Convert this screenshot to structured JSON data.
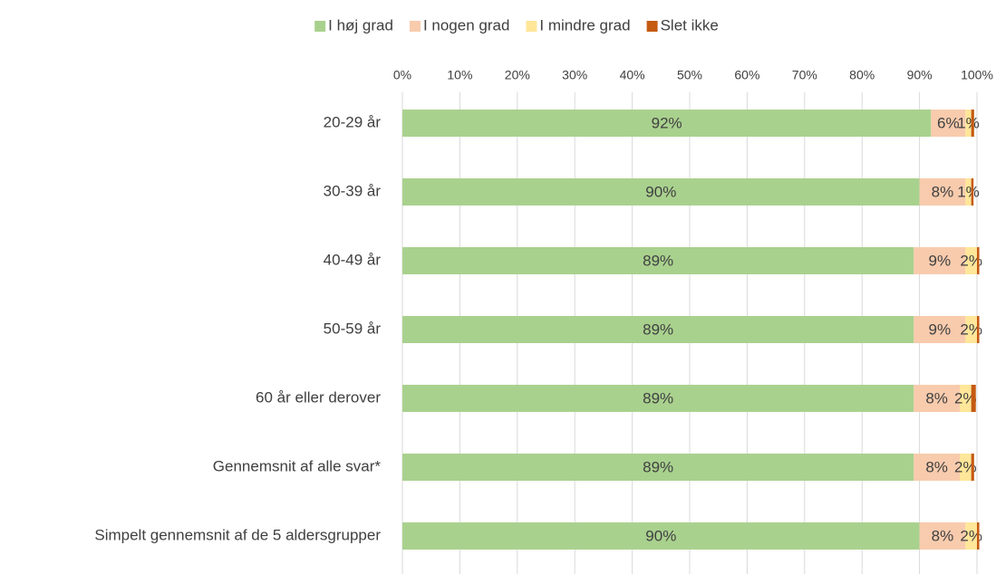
{
  "chart_data": {
    "type": "stacked_barh",
    "categories": [
      "20-29 år",
      "30-39 år",
      "40-49 år",
      "50-59 år",
      "60 år eller derover",
      "Gennemsnit af alle svar*",
      "Simpelt gennemsnit af de 5 aldersgrupper"
    ],
    "series": [
      {
        "name": "I høj grad",
        "color": "#a9d18e",
        "values": [
          92,
          90,
          89,
          89,
          89,
          89,
          90
        ],
        "value_labels": [
          "92%",
          "90%",
          "89%",
          "89%",
          "89%",
          "89%",
          "90%"
        ]
      },
      {
        "name": "I nogen grad",
        "color": "#f8cbad",
        "values": [
          6,
          8,
          9,
          9,
          8,
          8,
          8
        ],
        "value_labels": [
          "6%",
          "8%",
          "9%",
          "9%",
          "8%",
          "8%",
          "8%"
        ]
      },
      {
        "name": "I mindre grad",
        "color": "#ffe699",
        "values": [
          1,
          1,
          2,
          2,
          2,
          2,
          2
        ],
        "value_labels": [
          "1%",
          "1%",
          "2%",
          "2%",
          "2%",
          "2%",
          "2%"
        ]
      },
      {
        "name": "Slet ikke",
        "color": "#c55a11",
        "values": [
          0.5,
          0.4,
          0.4,
          0.4,
          0.8,
          0.5,
          0.4
        ]
      }
    ],
    "xlim": [
      0,
      100
    ],
    "xticks": [
      {
        "value": 0,
        "label": "0%"
      },
      {
        "value": 10,
        "label": "10%"
      },
      {
        "value": 20,
        "label": "20%"
      },
      {
        "value": 30,
        "label": "30%"
      },
      {
        "value": 40,
        "label": "40%"
      },
      {
        "value": 50,
        "label": "50%"
      },
      {
        "value": 60,
        "label": "60%"
      },
      {
        "value": 70,
        "label": "70%"
      },
      {
        "value": 80,
        "label": "80%"
      },
      {
        "value": 90,
        "label": "90%"
      },
      {
        "value": 100,
        "label": "100%"
      }
    ],
    "grid": true,
    "legend": "top"
  }
}
